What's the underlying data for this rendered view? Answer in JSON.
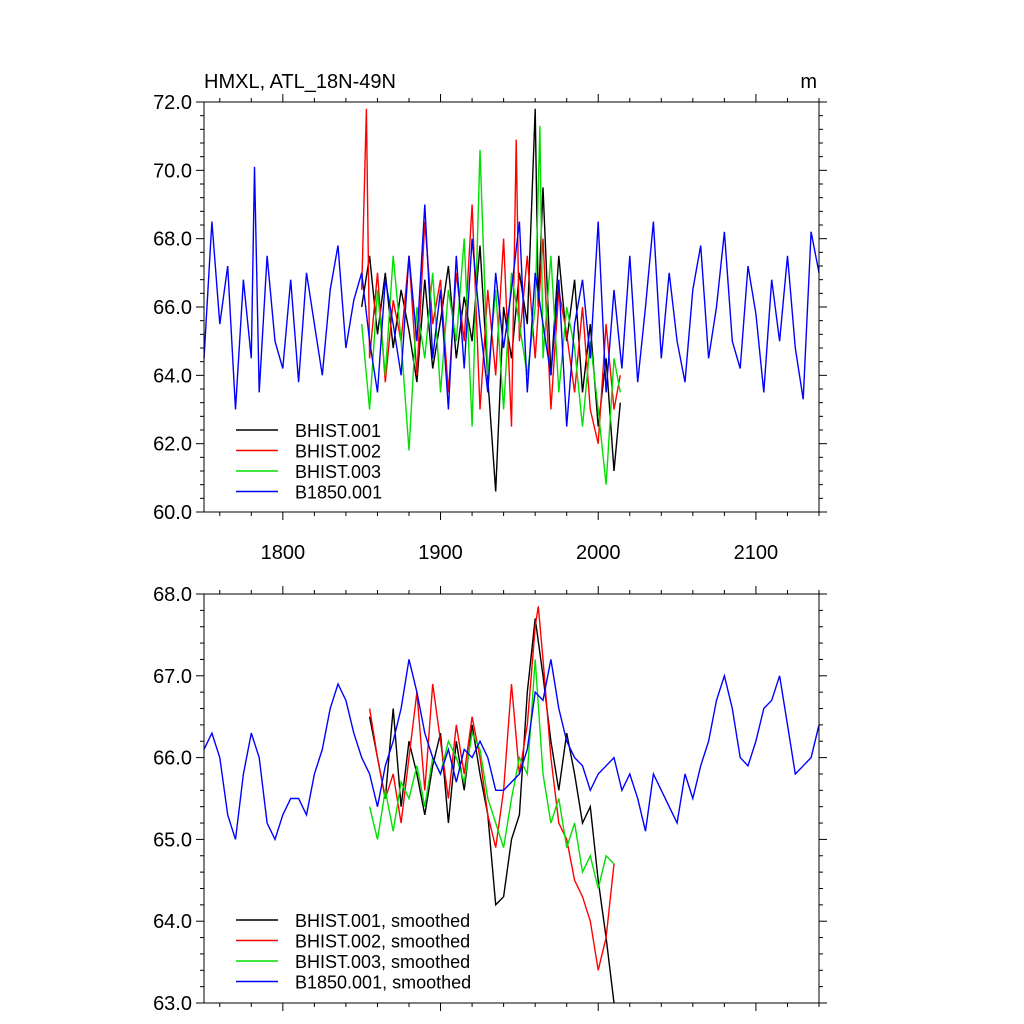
{
  "chart_data": [
    {
      "type": "line",
      "title": "HMXL, ATL_18N-49N",
      "units": "m",
      "xlim": [
        1750,
        2140
      ],
      "ylim": [
        60.0,
        72.0
      ],
      "x_ticks": [
        1800,
        1900,
        2000,
        2100
      ],
      "x_tick_labels": [
        "1800",
        "1900",
        "2000",
        "2100"
      ],
      "y_ticks": [
        60.0,
        62.0,
        64.0,
        66.0,
        68.0,
        70.0,
        72.0
      ],
      "y_tick_labels": [
        "60.0",
        "62.0",
        "64.0",
        "66.0",
        "68.0",
        "70.0",
        "72.0"
      ],
      "legend_position": "bottom-left",
      "series": [
        {
          "name": "BHIST.001",
          "color": "#000000",
          "x": [
            1850,
            1855,
            1860,
            1865,
            1870,
            1875,
            1880,
            1885,
            1890,
            1895,
            1900,
            1905,
            1910,
            1915,
            1920,
            1925,
            1930,
            1935,
            1940,
            1945,
            1950,
            1955,
            1960,
            1962,
            1965,
            1970,
            1975,
            1980,
            1985,
            1990,
            1995,
            2000,
            2005,
            2010,
            2014
          ],
          "y": [
            66.0,
            67.5,
            65.2,
            67.0,
            64.8,
            66.5,
            65.3,
            63.8,
            66.8,
            64.2,
            65.6,
            67.2,
            64.5,
            66.3,
            65.0,
            67.8,
            63.9,
            60.6,
            66.0,
            64.5,
            67.0,
            65.5,
            71.8,
            66.0,
            69.5,
            64.0,
            67.5,
            65.0,
            66.8,
            63.5,
            65.5,
            62.5,
            64.5,
            61.2,
            63.2
          ]
        },
        {
          "name": "BHIST.002",
          "color": "#ff0000",
          "x": [
            1850,
            1853,
            1855,
            1860,
            1865,
            1870,
            1875,
            1880,
            1885,
            1890,
            1895,
            1900,
            1905,
            1910,
            1915,
            1920,
            1925,
            1930,
            1935,
            1940,
            1945,
            1948,
            1950,
            1955,
            1960,
            1965,
            1970,
            1975,
            1980,
            1985,
            1990,
            1995,
            2000,
            2005,
            2010,
            2014
          ],
          "y": [
            66.5,
            71.8,
            64.5,
            67.0,
            63.8,
            66.2,
            65.0,
            67.5,
            64.0,
            68.5,
            65.5,
            66.8,
            63.5,
            67.0,
            65.0,
            69.0,
            63.0,
            66.5,
            64.0,
            68.0,
            62.5,
            70.9,
            65.0,
            67.5,
            64.5,
            68.0,
            63.0,
            66.5,
            65.2,
            63.5,
            66.0,
            63.0,
            62.0,
            65.5,
            63.0,
            64.0
          ]
        },
        {
          "name": "BHIST.003",
          "color": "#00e000",
          "x": [
            1850,
            1855,
            1860,
            1865,
            1870,
            1875,
            1880,
            1885,
            1890,
            1895,
            1900,
            1905,
            1910,
            1915,
            1920,
            1925,
            1930,
            1935,
            1940,
            1945,
            1950,
            1955,
            1960,
            1963,
            1965,
            1970,
            1975,
            1980,
            1985,
            1990,
            1995,
            2000,
            2005,
            2010,
            2014
          ],
          "y": [
            65.5,
            63.0,
            66.5,
            64.0,
            67.5,
            65.0,
            61.8,
            66.0,
            64.5,
            67.0,
            63.5,
            66.5,
            65.0,
            68.0,
            62.5,
            70.6,
            64.0,
            66.5,
            63.0,
            67.0,
            65.5,
            64.0,
            66.0,
            71.3,
            64.5,
            67.5,
            63.5,
            66.0,
            64.8,
            62.5,
            65.0,
            63.0,
            60.8,
            64.5,
            63.5
          ]
        },
        {
          "name": "B1850.001",
          "color": "#0000ff",
          "x": [
            1750,
            1755,
            1760,
            1765,
            1770,
            1775,
            1780,
            1782,
            1785,
            1790,
            1795,
            1800,
            1805,
            1810,
            1815,
            1820,
            1825,
            1830,
            1835,
            1840,
            1845,
            1850,
            1855,
            1860,
            1865,
            1870,
            1875,
            1880,
            1885,
            1890,
            1895,
            1900,
            1905,
            1910,
            1915,
            1920,
            1925,
            1930,
            1935,
            1940,
            1945,
            1950,
            1955,
            1960,
            1965,
            1970,
            1975,
            1980,
            1985,
            1990,
            1995,
            2000,
            2005,
            2010,
            2015,
            2020,
            2025,
            2030,
            2035,
            2040,
            2045,
            2050,
            2055,
            2060,
            2065,
            2070,
            2075,
            2080,
            2085,
            2090,
            2095,
            2100,
            2105,
            2110,
            2115,
            2120,
            2125,
            2130,
            2135,
            2140
          ],
          "y": [
            64.5,
            68.5,
            65.5,
            67.2,
            63.0,
            66.8,
            64.5,
            70.1,
            63.5,
            67.5,
            65.0,
            64.2,
            66.8,
            63.8,
            67.0,
            65.5,
            64.0,
            66.5,
            67.8,
            64.8,
            66.2,
            67.0,
            65.0,
            63.5,
            66.8,
            65.5,
            64.0,
            67.5,
            65.0,
            69.0,
            64.5,
            66.5,
            63.0,
            67.5,
            64.2,
            68.0,
            65.5,
            63.5,
            67.0,
            64.8,
            66.5,
            68.5,
            63.5,
            67.0,
            65.5,
            64.0,
            66.8,
            62.5,
            65.5,
            66.8,
            64.5,
            68.5,
            63.5,
            66.5,
            64.2,
            67.5,
            63.8,
            66.0,
            68.5,
            64.5,
            67.0,
            65.0,
            63.8,
            66.5,
            67.8,
            64.5,
            66.0,
            68.2,
            65.0,
            64.2,
            67.2,
            65.8,
            63.5,
            66.8,
            65.0,
            67.5,
            64.8,
            63.3,
            68.2,
            67.0
          ]
        }
      ]
    },
    {
      "type": "line",
      "xlim": [
        1750,
        2140
      ],
      "ylim": [
        63.0,
        68.0
      ],
      "x_ticks": [
        1800,
        1900,
        2000,
        2100
      ],
      "y_ticks": [
        63.0,
        64.0,
        65.0,
        66.0,
        67.0,
        68.0
      ],
      "y_tick_labels": [
        "63.0",
        "64.0",
        "65.0",
        "66.0",
        "67.0",
        "68.0"
      ],
      "legend_position": "bottom-left",
      "series": [
        {
          "name": "BHIST.001, smoothed",
          "color": "#000000",
          "x": [
            1855,
            1860,
            1865,
            1870,
            1875,
            1880,
            1885,
            1890,
            1895,
            1900,
            1905,
            1910,
            1915,
            1920,
            1925,
            1930,
            1935,
            1940,
            1945,
            1950,
            1955,
            1960,
            1965,
            1970,
            1975,
            1980,
            1985,
            1990,
            1995,
            2000,
            2005,
            2010
          ],
          "y": [
            66.5,
            66.0,
            65.5,
            66.6,
            65.4,
            66.2,
            65.8,
            65.3,
            65.9,
            66.3,
            65.2,
            66.2,
            65.6,
            66.4,
            65.8,
            65.3,
            64.2,
            64.3,
            65.0,
            65.3,
            66.8,
            67.7,
            67.0,
            66.2,
            65.6,
            66.3,
            65.8,
            65.2,
            65.4,
            64.5,
            63.8,
            63.0
          ]
        },
        {
          "name": "BHIST.002, smoothed",
          "color": "#ff0000",
          "x": [
            1855,
            1860,
            1865,
            1870,
            1875,
            1880,
            1885,
            1890,
            1895,
            1900,
            1905,
            1910,
            1915,
            1920,
            1925,
            1930,
            1935,
            1940,
            1945,
            1950,
            1955,
            1960,
            1962,
            1965,
            1970,
            1975,
            1980,
            1985,
            1990,
            1995,
            2000,
            2005,
            2010
          ],
          "y": [
            66.6,
            66.0,
            65.5,
            65.8,
            65.2,
            66.0,
            66.8,
            65.6,
            66.9,
            66.2,
            65.5,
            66.4,
            65.8,
            66.5,
            66.0,
            65.3,
            64.9,
            65.6,
            66.9,
            65.8,
            66.4,
            67.6,
            67.85,
            67.2,
            66.0,
            65.2,
            65.0,
            64.5,
            64.3,
            64.0,
            63.4,
            63.8,
            64.7
          ]
        },
        {
          "name": "BHIST.003, smoothed",
          "color": "#00e000",
          "x": [
            1855,
            1860,
            1865,
            1870,
            1875,
            1880,
            1885,
            1890,
            1895,
            1900,
            1905,
            1910,
            1915,
            1920,
            1925,
            1930,
            1935,
            1940,
            1945,
            1950,
            1955,
            1960,
            1965,
            1970,
            1975,
            1980,
            1985,
            1990,
            1995,
            2000,
            2005,
            2010
          ],
          "y": [
            65.4,
            65.0,
            65.6,
            65.1,
            65.7,
            65.5,
            65.9,
            65.4,
            66.0,
            65.8,
            66.2,
            66.0,
            65.7,
            66.3,
            66.1,
            65.5,
            65.2,
            64.9,
            65.5,
            66.0,
            65.8,
            67.2,
            65.8,
            65.2,
            65.5,
            64.9,
            65.2,
            64.6,
            64.8,
            64.4,
            64.8,
            64.7
          ]
        },
        {
          "name": "B1850.001, smoothed",
          "color": "#0000ff",
          "x": [
            1750,
            1755,
            1760,
            1765,
            1770,
            1775,
            1780,
            1785,
            1790,
            1795,
            1800,
            1805,
            1810,
            1815,
            1820,
            1825,
            1830,
            1835,
            1840,
            1845,
            1850,
            1855,
            1860,
            1865,
            1870,
            1875,
            1880,
            1885,
            1890,
            1895,
            1900,
            1905,
            1910,
            1915,
            1920,
            1925,
            1930,
            1935,
            1940,
            1945,
            1950,
            1955,
            1960,
            1965,
            1970,
            1975,
            1980,
            1985,
            1990,
            1995,
            2000,
            2005,
            2010,
            2015,
            2020,
            2025,
            2030,
            2035,
            2040,
            2045,
            2050,
            2055,
            2060,
            2065,
            2070,
            2075,
            2080,
            2085,
            2090,
            2095,
            2100,
            2105,
            2110,
            2115,
            2120,
            2125,
            2130,
            2135,
            2140
          ],
          "y": [
            66.1,
            66.3,
            66.0,
            65.3,
            65.0,
            65.8,
            66.3,
            66.0,
            65.2,
            65.0,
            65.3,
            65.5,
            65.5,
            65.3,
            65.8,
            66.1,
            66.6,
            66.9,
            66.7,
            66.3,
            66.0,
            65.8,
            65.4,
            65.9,
            66.2,
            66.6,
            67.2,
            66.8,
            66.3,
            66.0,
            65.8,
            66.1,
            65.7,
            66.1,
            66.0,
            66.2,
            66.0,
            65.6,
            65.6,
            65.7,
            65.8,
            66.1,
            66.8,
            66.7,
            67.2,
            66.6,
            66.2,
            66.0,
            65.9,
            65.6,
            65.8,
            65.9,
            66.0,
            65.6,
            65.8,
            65.5,
            65.1,
            65.8,
            65.6,
            65.4,
            65.2,
            65.8,
            65.5,
            65.9,
            66.2,
            66.7,
            67.0,
            66.6,
            66.0,
            65.9,
            66.2,
            66.6,
            66.7,
            67.0,
            66.4,
            65.8,
            65.9,
            66.0,
            66.4
          ]
        }
      ]
    }
  ]
}
